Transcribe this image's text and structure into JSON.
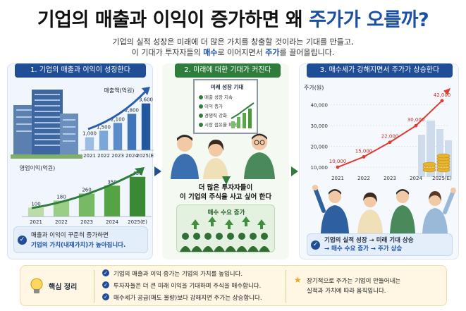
{
  "header": {
    "title_main": "기업의 매출과 이익이 증가하면 왜",
    "title_accent": "주가가 오를까?",
    "subtitle_line1": "기업의 실적 성장은 미래에 더 많은 가치를 창출할 것이라는 기대를 만들고,",
    "subtitle_line2_a": "이 기대가 투자자들의",
    "subtitle_line2_b": "매수",
    "subtitle_line2_c": "로 이어지면서",
    "subtitle_line2_d": "주가",
    "subtitle_line2_e": "를 끌어올립니다."
  },
  "panel1": {
    "tag": "1. 기업의 매출과 이익이 성장한다",
    "note_line1": "매출과 이익이 꾸준히 증가하면",
    "note_line2": "기업의 가치(내재가치)가 높아집니다."
  },
  "panel2": {
    "tag": "2. 미래에 대한 기대가 커진다",
    "board_title": "미래 성장 기대",
    "board_items": [
      "매출 성장 지속",
      "이익 증가",
      "경쟁력 강화",
      "시장 점유율 확대"
    ],
    "caption_line1": "더 많은 투자자들이",
    "caption_line2": "이 기업의 주식을 사고 싶어 한다",
    "demand_title": "매수 수요 증가"
  },
  "panel3": {
    "tag": "3. 매수세가 강해지면서 주가가 상승한다",
    "note_line1": "기업의 실적 성장 → 미래 기대 상승",
    "note_line2": "→ 매수 수요 증가 → 주가 상승"
  },
  "summary": {
    "label": "핵심 정리",
    "bullets": [
      "기업의 매출과 이익 증가는 기업의 가치를 높입니다.",
      "투자자들은 더 큰 미래 이익을 기대하며 주식을 매수합니다.",
      "매수세가 공급(매도 물량)보다 강해지면 주가는 상승합니다."
    ],
    "side_line1": "장기적으로 주가는 기업이 만들어내는",
    "side_line2": "실적과 가치에 따라 움직입니다."
  },
  "colors": {
    "brand_blue": "#1f4e96",
    "brand_green": "#2f7d3c",
    "accent_red": "#e03a2f"
  },
  "chart_data": [
    {
      "type": "bar",
      "title": "매출액(억원)",
      "categories": [
        "2021",
        "2022",
        "2023",
        "2024",
        "2025(E)"
      ],
      "values": [
        1000,
        1500,
        2100,
        2800,
        3600
      ],
      "value_labels": [
        "1,000",
        "1,500",
        "2,100",
        "2,800",
        "3,600"
      ],
      "ylim": [
        0,
        3800
      ]
    },
    {
      "type": "bar",
      "title": "영업이익(억원)",
      "categories": [
        "2021",
        "2022",
        "2023",
        "2024",
        "2025(E)"
      ],
      "values": [
        100,
        180,
        260,
        350,
        450
      ],
      "value_labels": [
        "100",
        "180",
        "260",
        "350",
        "450"
      ],
      "ylim": [
        0,
        480
      ]
    },
    {
      "type": "line",
      "title": "주가(원)",
      "x": [
        "2021",
        "2022",
        "2023",
        "2024",
        "2025(E)"
      ],
      "values": [
        10000,
        15000,
        22000,
        30000,
        42000
      ],
      "value_labels": [
        "10,000",
        "15,000",
        "22,000",
        "30,000",
        "42,000"
      ],
      "yticks": [
        10000,
        20000,
        30000,
        40000
      ],
      "ytick_labels": [
        "10,000",
        "20,000",
        "30,000",
        "40,000"
      ],
      "ylim": [
        8000,
        46000
      ],
      "grid": true
    }
  ]
}
